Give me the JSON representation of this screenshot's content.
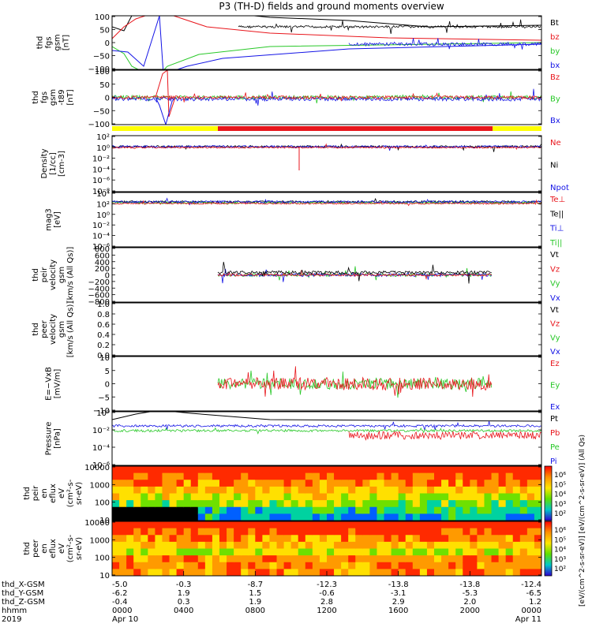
{
  "title": "P3 (TH-D) fields and ground moments overview",
  "colors": {
    "black": "#000000",
    "red": "#e8161c",
    "green": "#28c828",
    "blue": "#1414e6",
    "yellow": "#ffff00"
  },
  "chart_data": [
    {
      "type": "line",
      "id": "fgs_gsm",
      "ylabel": [
        "thd",
        "fgs",
        "gsm",
        "[nT]"
      ],
      "ylim": [
        -100,
        100
      ],
      "yticks": [
        "100",
        "50",
        "0",
        "−50",
        "−100"
      ],
      "legend": [
        {
          "name": "Bt",
          "color": "black"
        },
        {
          "name": "bz",
          "color": "red"
        },
        {
          "name": "by",
          "color": "green"
        },
        {
          "name": "bx",
          "color": "blue"
        }
      ]
    },
    {
      "type": "line",
      "id": "fgs_gsm_t89",
      "ylabel": [
        "thd",
        "fgs",
        "gsm",
        "-t89",
        "[nT]"
      ],
      "ylim": [
        -130,
        130
      ],
      "yticks": [
        "100",
        "50",
        "0",
        "−50",
        "−100"
      ],
      "legend": [
        {
          "name": "Bz",
          "color": "red"
        },
        {
          "name": "By",
          "color": "green"
        },
        {
          "name": "Bx",
          "color": "blue"
        }
      ]
    },
    {
      "type": "line",
      "id": "density",
      "ylabel": [
        "Density",
        "[1/cc]",
        "[cm-3]"
      ],
      "scale": "log",
      "yticks": [
        "10²",
        "10⁰",
        "10⁻²",
        "10⁻⁴",
        "10⁻⁶",
        "10⁻⁸"
      ],
      "legend": [
        {
          "name": "Ne",
          "color": "red"
        },
        {
          "name": "Ni",
          "color": "black"
        },
        {
          "name": "Npot",
          "color": "blue"
        }
      ]
    },
    {
      "type": "line",
      "id": "temperature",
      "ylabel": [
        "mag3",
        "[eV]"
      ],
      "scale": "log",
      "yticks": [
        "10⁴",
        "10²",
        "10⁰",
        "10⁻²",
        "10⁻⁴",
        "10⁻⁶"
      ],
      "legend": [
        {
          "name": "Te⊥",
          "color": "red"
        },
        {
          "name": "Te||",
          "color": "black"
        },
        {
          "name": "Ti⊥",
          "color": "blue"
        },
        {
          "name": "Ti||",
          "color": "green"
        }
      ]
    },
    {
      "type": "line",
      "id": "peir_velocity",
      "ylabel": [
        "thd",
        "peir",
        "velocity",
        "gsm",
        "[km/s (All Qs)]"
      ],
      "ylim": [
        -800,
        800
      ],
      "yticks": [
        "800",
        "600",
        "400",
        "200",
        "0",
        "−200",
        "−400",
        "−600",
        "−800"
      ],
      "legend": [
        {
          "name": "Vt",
          "color": "black"
        },
        {
          "name": "Vz",
          "color": "red"
        },
        {
          "name": "Vy",
          "color": "green"
        },
        {
          "name": "Vx",
          "color": "blue"
        }
      ]
    },
    {
      "type": "line",
      "id": "peer_velocity",
      "ylabel": [
        "thd",
        "peer",
        "velocity",
        "gsm",
        "[km/s (All Qs)]"
      ],
      "ylim": [
        0,
        1
      ],
      "yticks": [
        "1.0",
        "0.8",
        "0.6",
        "0.4",
        "0.2",
        "0.0"
      ],
      "legend": [
        {
          "name": "Vt",
          "color": "black"
        },
        {
          "name": "Vz",
          "color": "red"
        },
        {
          "name": "Vy",
          "color": "green"
        },
        {
          "name": "Vx",
          "color": "blue"
        }
      ]
    },
    {
      "type": "line",
      "id": "efield",
      "ylabel": [
        "E=−VxB",
        "[mV/m]"
      ],
      "ylim": [
        -12,
        10
      ],
      "yticks": [
        "10",
        "5",
        "0",
        "−5",
        "−10"
      ],
      "legend": [
        {
          "name": "Ez",
          "color": "red"
        },
        {
          "name": "Ey",
          "color": "green"
        },
        {
          "name": "Ex",
          "color": "blue"
        }
      ]
    },
    {
      "type": "line",
      "id": "pressure",
      "ylabel": [
        "Pressure",
        "[nPa]"
      ],
      "scale": "log",
      "yticks": [
        "10⁰",
        "10⁻²",
        "10⁻⁴",
        "10⁻⁶"
      ],
      "legend": [
        {
          "name": "Pt",
          "color": "black"
        },
        {
          "name": "Pb",
          "color": "red"
        },
        {
          "name": "Pe",
          "color": "green"
        },
        {
          "name": "Pi",
          "color": "blue"
        }
      ]
    },
    {
      "type": "heatmap",
      "id": "peir_spectrogram",
      "ylabel": [
        "thd",
        "peir",
        "en",
        "eflux",
        "eV",
        "(cm²-s-",
        "sr-eV)"
      ],
      "yticks": [
        "10000",
        "1000",
        "100",
        "10"
      ]
    },
    {
      "type": "heatmap",
      "id": "peer_spectrogram",
      "ylabel": [
        "thd",
        "peer",
        "en",
        "eflux",
        "eV",
        "(cm²-s-",
        "sr-eV)"
      ],
      "yticks": [
        "10000",
        "1000",
        "100",
        "10"
      ]
    }
  ],
  "colorbar": {
    "ticks": [
      "10⁶",
      "10⁵",
      "10⁴",
      "10³",
      "10²"
    ],
    "label": "[eV/(cm^2-s-sr-eV)] [eV/(cm^2-s-sr-eV)] (All Qs)"
  },
  "xaxis": {
    "rows": [
      {
        "label": "thd_X-GSM",
        "values": [
          "-5.0",
          "-0.3",
          "-8.7",
          "-12.3",
          "-13.8",
          "-13.8",
          "-12.4"
        ]
      },
      {
        "label": "thd_Y-GSM",
        "values": [
          "-6.2",
          "1.9",
          "1.5",
          "-0.6",
          "-3.1",
          "-5.3",
          "-6.5"
        ]
      },
      {
        "label": "thd_Z-GSM",
        "values": [
          "-0.4",
          "0.3",
          "1.9",
          "2.8",
          "2.9",
          "2.0",
          "1.2"
        ]
      },
      {
        "label": "hhmm",
        "values": [
          "0000",
          "0400",
          "0800",
          "1200",
          "1600",
          "2000",
          "0000"
        ]
      },
      {
        "label": "2019",
        "values": [
          "Apr 10",
          "",
          "",
          "",
          "",
          "",
          "Apr 11"
        ]
      }
    ]
  }
}
